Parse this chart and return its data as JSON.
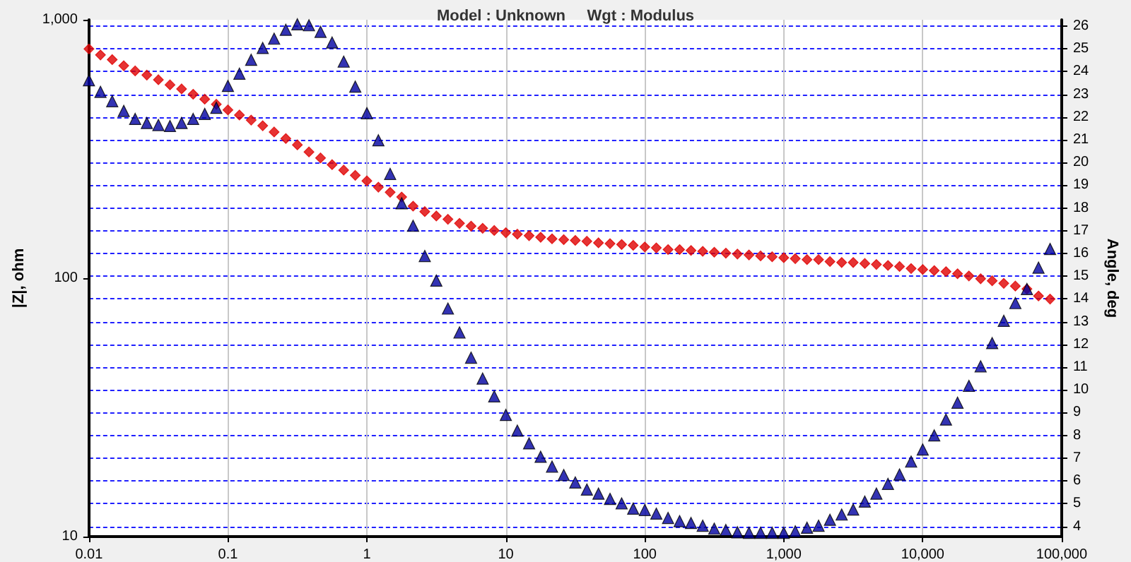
{
  "chart_data": {
    "type": "scatter",
    "title": "Model : Unknown     Wgt : Modulus",
    "ylabel": "|Z|, ohm",
    "y2label": "Angle, deg",
    "x": [
      0.01,
      0.0121,
      0.0147,
      0.0178,
      0.0215,
      0.0261,
      0.0316,
      0.0383,
      0.0464,
      0.0562,
      0.0681,
      0.0825,
      0.1,
      0.121,
      0.147,
      0.178,
      0.215,
      0.261,
      0.316,
      0.383,
      0.464,
      0.562,
      0.681,
      0.825,
      1,
      1.21,
      1.47,
      1.78,
      2.15,
      2.61,
      3.16,
      3.83,
      4.64,
      5.62,
      6.81,
      8.25,
      10,
      12.1,
      14.7,
      17.8,
      21.5,
      26.1,
      31.6,
      38.3,
      46.4,
      56.2,
      68.1,
      82.5,
      100,
      121,
      147,
      178,
      215,
      261,
      316,
      383,
      464,
      562,
      681,
      825,
      1000,
      1210,
      1470,
      1780,
      2150,
      2610,
      3160,
      3830,
      4640,
      5620,
      6810,
      8250,
      10000,
      12100,
      14700,
      17800,
      21500,
      26100,
      31600,
      38300,
      46400,
      56200,
      68100,
      82500
    ],
    "series": [
      {
        "marker": "diamond",
        "color": "#e00000",
        "values": [
          771,
          731,
          701,
          664,
          634,
          611,
          586,
          560,
          540,
          515,
          493,
          471,
          448,
          428,
          409,
          389,
          368,
          347,
          328,
          308,
          292,
          275,
          262,
          250,
          238,
          225,
          215,
          206,
          190,
          181,
          174,
          169,
          163,
          159,
          156,
          153,
          150,
          148,
          146,
          144,
          142,
          141,
          140,
          139,
          137,
          136,
          135,
          134,
          132,
          131,
          129,
          129,
          128,
          127,
          126,
          125,
          124,
          123,
          122,
          121,
          120,
          119,
          118,
          118,
          116,
          115,
          115,
          114,
          113,
          112,
          111,
          109,
          108,
          107,
          106,
          104,
          102,
          99.5,
          97.7,
          95.5,
          93.2,
          90.8,
          85.3,
          83
        ]
      },
      {
        "marker": "triangle",
        "axis": "y2",
        "color": "#0000a0",
        "values": [
          23.62,
          23.11,
          22.7,
          22.27,
          21.92,
          21.74,
          21.65,
          21.61,
          21.74,
          21.92,
          22.14,
          22.41,
          23.37,
          23.91,
          24.52,
          25.04,
          25.45,
          25.84,
          26.08,
          26.04,
          25.75,
          25.28,
          24.44,
          23.34,
          22.17,
          20.98,
          19.5,
          18.21,
          17.22,
          15.89,
          14.81,
          13.58,
          12.53,
          11.42,
          10.5,
          9.72,
          8.9,
          8.21,
          7.65,
          7.06,
          6.63,
          6.26,
          5.93,
          5.62,
          5.44,
          5.21,
          5.01,
          4.78,
          4.72,
          4.56,
          4.37,
          4.23,
          4.15,
          4.03,
          3.9,
          3.84,
          3.74,
          3.72,
          3.72,
          3.72,
          3.72,
          3.78,
          3.94,
          4.03,
          4.29,
          4.52,
          4.74,
          5.09,
          5.44,
          5.87,
          6.28,
          6.85,
          7.38,
          8,
          8.7,
          9.44,
          10.18,
          11.04,
          12.06,
          13.04,
          13.82,
          14.44,
          15.38,
          16.2
        ]
      }
    ],
    "log": "xy",
    "grid": true,
    "xlim": [
      0.01,
      100000
    ],
    "xticks": [
      0.01,
      0.1,
      1,
      10,
      100,
      {
        "value": 1000,
        "label": "1,000"
      },
      {
        "value": 10000,
        "label": "10,000"
      },
      {
        "value": 100000,
        "label": "100,000"
      }
    ],
    "ylim": [
      10,
      1000
    ],
    "yticks": [
      10,
      100,
      {
        "value": 1000,
        "label": "1,000"
      }
    ],
    "y2lim": [
      3.55,
      26.28
    ],
    "y2ticks": [
      4,
      5,
      6,
      7,
      8,
      9,
      10,
      11,
      12,
      13,
      14,
      15,
      16,
      17,
      18,
      19,
      20,
      21,
      22,
      23,
      24,
      25,
      26
    ]
  }
}
